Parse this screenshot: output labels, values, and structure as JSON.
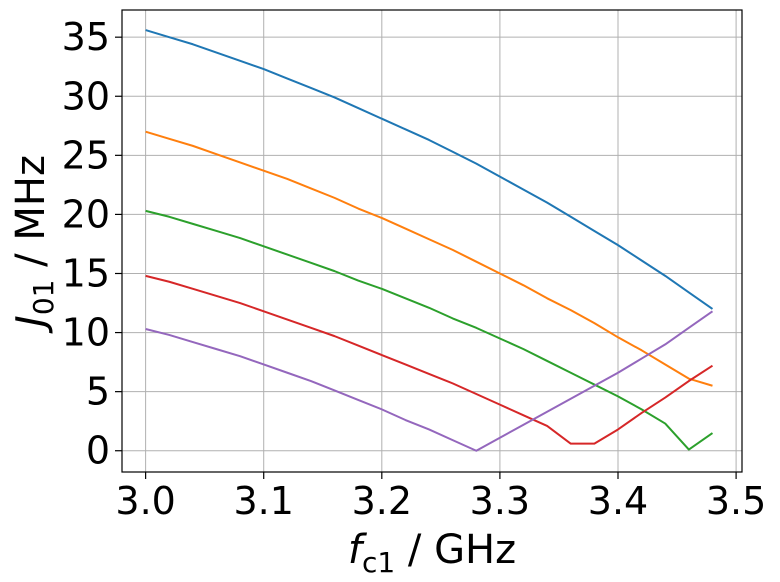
{
  "chart_data": {
    "type": "line",
    "xlabel": "f_c1 / GHz",
    "ylabel": "J_01 / MHz",
    "xlabel_parts": {
      "main": "f",
      "sub": "c1",
      "unit": " / GHz"
    },
    "ylabel_parts": {
      "main": "J",
      "sub": "01",
      "unit": " / MHz"
    },
    "xlim": [
      2.98,
      3.505
    ],
    "ylim": [
      -1.8,
      37.3
    ],
    "xticks": [
      3.0,
      3.1,
      3.2,
      3.3,
      3.4,
      3.5
    ],
    "xtick_labels": [
      "3.0",
      "3.1",
      "3.2",
      "3.3",
      "3.4",
      "3.5"
    ],
    "yticks": [
      0,
      5,
      10,
      15,
      20,
      25,
      30,
      35
    ],
    "ytick_labels": [
      "0",
      "5",
      "10",
      "15",
      "20",
      "25",
      "30",
      "35"
    ],
    "grid": true,
    "legend": "none",
    "x": [
      3.0,
      3.02,
      3.04,
      3.06,
      3.08,
      3.1,
      3.12,
      3.14,
      3.16,
      3.18,
      3.2,
      3.22,
      3.24,
      3.26,
      3.28,
      3.3,
      3.32,
      3.34,
      3.36,
      3.38,
      3.4,
      3.42,
      3.44,
      3.46,
      3.48
    ],
    "series": [
      {
        "color": "#1f77b4",
        "values": [
          35.6,
          35.0,
          34.4,
          33.7,
          33.0,
          32.3,
          31.5,
          30.7,
          29.9,
          29.0,
          28.1,
          27.2,
          26.3,
          25.3,
          24.3,
          23.2,
          22.1,
          21.0,
          19.8,
          18.6,
          17.4,
          16.1,
          14.8,
          13.4,
          12.0
        ]
      },
      {
        "color": "#ff7f0e",
        "values": [
          27.0,
          26.4,
          25.8,
          25.1,
          24.4,
          23.7,
          23.0,
          22.2,
          21.4,
          20.5,
          19.7,
          18.8,
          17.9,
          17.0,
          16.0,
          15.0,
          14.0,
          12.9,
          11.9,
          10.8,
          9.6,
          8.5,
          7.3,
          6.1,
          5.5
        ]
      },
      {
        "color": "#2ca02c",
        "values": [
          20.3,
          19.8,
          19.2,
          18.6,
          18.0,
          17.3,
          16.6,
          15.9,
          15.2,
          14.4,
          13.7,
          12.9,
          12.1,
          11.2,
          10.4,
          9.5,
          8.6,
          7.6,
          6.6,
          5.6,
          4.6,
          3.5,
          2.3,
          0.1,
          1.5
        ]
      },
      {
        "color": "#d62728",
        "values": [
          14.8,
          14.3,
          13.7,
          13.1,
          12.5,
          11.8,
          11.1,
          10.4,
          9.7,
          8.9,
          8.1,
          7.3,
          6.5,
          5.7,
          4.8,
          3.9,
          3.0,
          2.1,
          0.6,
          0.6,
          1.8,
          3.2,
          4.5,
          5.9,
          7.2
        ]
      },
      {
        "color": "#9467bd",
        "values": [
          10.3,
          9.8,
          9.2,
          8.6,
          8.0,
          7.3,
          6.6,
          5.9,
          5.1,
          4.3,
          3.5,
          2.6,
          1.8,
          0.9,
          0.0,
          1.1,
          2.2,
          3.3,
          4.4,
          5.5,
          6.6,
          7.8,
          9.0,
          10.4,
          11.8
        ]
      }
    ]
  }
}
